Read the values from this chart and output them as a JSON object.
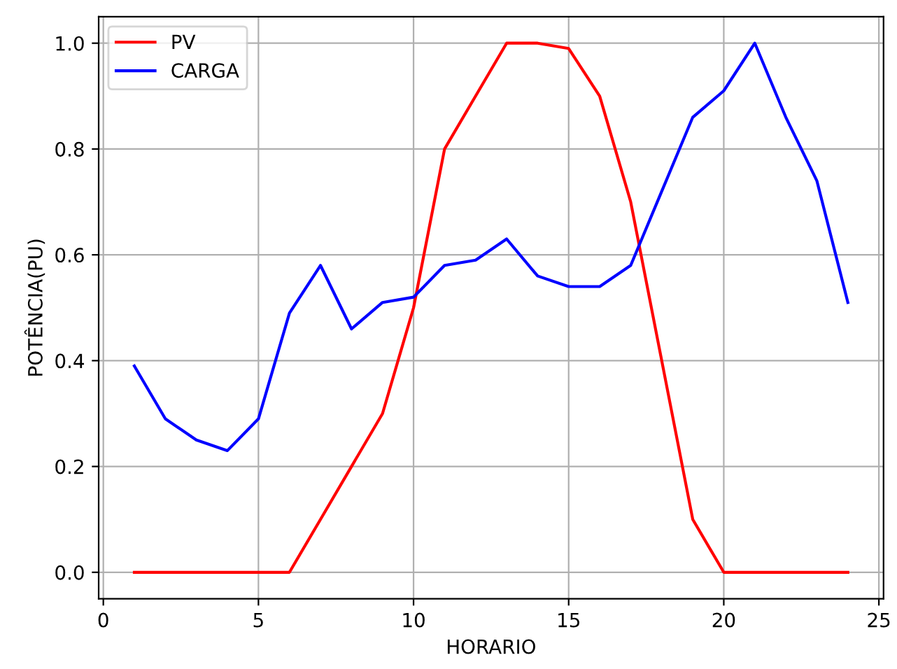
{
  "chart_data": {
    "type": "line",
    "xlabel": "HORARIO",
    "ylabel": "POTÊNCIA(PU)",
    "x": [
      1,
      2,
      3,
      4,
      5,
      6,
      7,
      8,
      9,
      10,
      11,
      12,
      13,
      14,
      15,
      16,
      17,
      18,
      19,
      20,
      21,
      22,
      23,
      24
    ],
    "series": [
      {
        "name": "PV",
        "color": "#ff0000",
        "values": [
          0,
          0,
          0,
          0,
          0,
          0,
          0.1,
          0.2,
          0.3,
          0.5,
          0.8,
          0.9,
          1.0,
          1.0,
          0.99,
          0.9,
          0.7,
          0.4,
          0.1,
          0,
          0,
          0,
          0,
          0
        ]
      },
      {
        "name": "CARGA",
        "color": "#0000ff",
        "values": [
          0.39,
          0.29,
          0.25,
          0.23,
          0.29,
          0.49,
          0.58,
          0.46,
          0.51,
          0.52,
          0.58,
          0.59,
          0.63,
          0.56,
          0.54,
          0.54,
          0.58,
          0.72,
          0.86,
          0.91,
          1.0,
          0.86,
          0.74,
          0.51
        ]
      }
    ],
    "xlim": [
      -0.15,
      25.15
    ],
    "xticks": [
      0,
      5,
      10,
      15,
      20,
      25
    ],
    "ylim": [
      -0.05,
      1.05
    ],
    "yticks": [
      {
        "value": 0,
        "label": "0.0"
      },
      {
        "value": 0.2,
        "label": "0.2"
      },
      {
        "value": 0.4,
        "label": "0.4"
      },
      {
        "value": 0.6,
        "label": "0.6"
      },
      {
        "value": 0.8,
        "label": "0.8"
      },
      {
        "value": 1.0,
        "label": "1.0"
      }
    ],
    "grid": true,
    "legend": "top left",
    "marker": "none",
    "line_style": "solid"
  }
}
